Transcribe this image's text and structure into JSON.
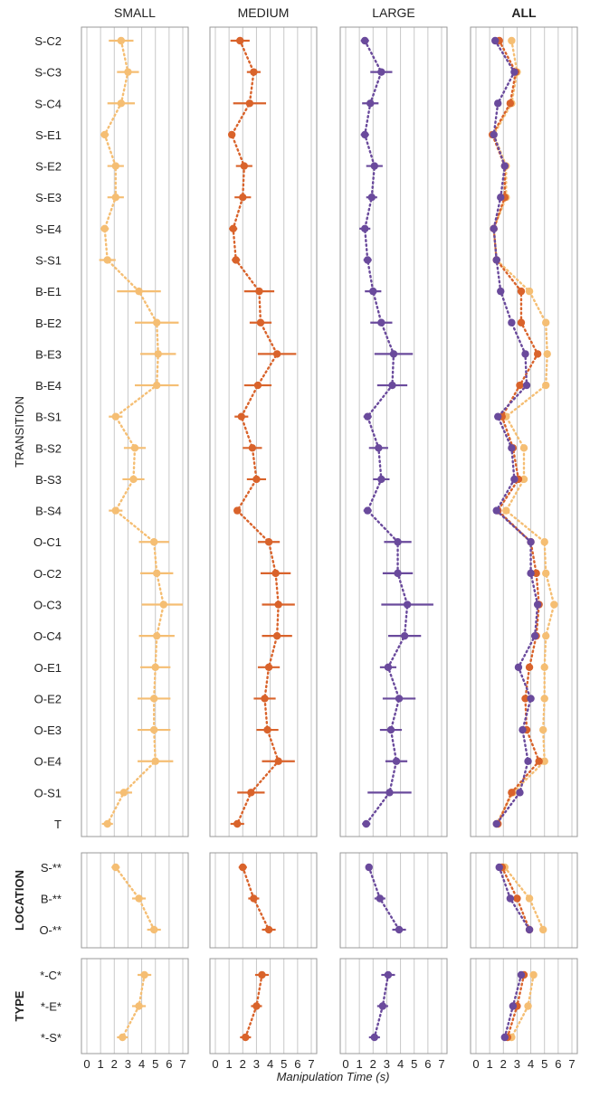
{
  "chart_data": {
    "type": "scatter",
    "xlabel": "Manipulation Time (s)",
    "xlim": [
      0,
      7
    ],
    "xticks": [
      "0",
      "1",
      "2",
      "3",
      "4",
      "5",
      "6",
      "7"
    ],
    "columns": [
      {
        "key": "small",
        "title": "SMALL",
        "bold": false
      },
      {
        "key": "medium",
        "title": "MEDIUM",
        "bold": false
      },
      {
        "key": "large",
        "title": "LARGE",
        "bold": false
      },
      {
        "key": "all",
        "title": "ALL",
        "bold": true
      }
    ],
    "series_colors": {
      "small": "#F5BE73",
      "medium": "#D9632B",
      "large": "#6A4A9C"
    },
    "groups": [
      {
        "label": "TRANSITION",
        "bold": false,
        "categories": [
          "S-C2",
          "S-C3",
          "S-C4",
          "S-E1",
          "S-E2",
          "S-E3",
          "S-E4",
          "S-S1",
          "B-E1",
          "B-E2",
          "B-E3",
          "B-E4",
          "B-S1",
          "B-S2",
          "B-S3",
          "B-S4",
          "O-C1",
          "O-C2",
          "O-C3",
          "O-C4",
          "O-E1",
          "O-E2",
          "O-E3",
          "O-E4",
          "O-S1",
          "T"
        ],
        "small": {
          "mean": [
            2.5,
            3.0,
            2.5,
            1.3,
            2.1,
            2.1,
            1.3,
            1.5,
            3.8,
            5.1,
            5.2,
            5.1,
            2.1,
            3.5,
            3.4,
            2.1,
            4.9,
            5.1,
            5.6,
            5.1,
            5.0,
            4.9,
            4.9,
            5.0,
            2.7,
            1.5
          ],
          "err": [
            0.9,
            0.8,
            1.0,
            0.3,
            0.6,
            0.6,
            0.3,
            0.6,
            1.6,
            1.6,
            1.3,
            1.6,
            0.5,
            0.8,
            0.8,
            0.5,
            1.1,
            1.2,
            1.6,
            1.3,
            1.1,
            1.2,
            1.2,
            1.3,
            0.6,
            0.4
          ]
        },
        "medium": {
          "mean": [
            1.8,
            2.8,
            2.5,
            1.2,
            2.1,
            2.0,
            1.3,
            1.5,
            3.2,
            3.3,
            4.5,
            3.1,
            1.9,
            2.7,
            3.0,
            1.6,
            3.9,
            4.4,
            4.6,
            4.5,
            3.9,
            3.6,
            3.8,
            4.6,
            2.6,
            1.6
          ],
          "err": [
            0.7,
            0.5,
            1.2,
            0.2,
            0.6,
            0.6,
            0.3,
            0.3,
            1.1,
            0.8,
            1.4,
            1.0,
            0.5,
            0.7,
            0.7,
            0.2,
            0.8,
            1.1,
            1.2,
            1.1,
            0.8,
            0.8,
            0.8,
            1.2,
            1.0,
            0.5
          ]
        },
        "large": {
          "mean": [
            1.4,
            2.6,
            1.8,
            1.4,
            2.1,
            1.9,
            1.4,
            1.6,
            2.0,
            2.6,
            3.5,
            3.4,
            1.6,
            2.4,
            2.6,
            1.6,
            3.8,
            3.8,
            4.5,
            4.3,
            3.1,
            3.9,
            3.3,
            3.7,
            3.2,
            1.5
          ],
          "err": [
            0.3,
            0.8,
            0.6,
            0.3,
            0.6,
            0.4,
            0.4,
            0.3,
            0.6,
            0.8,
            1.4,
            1.1,
            0.3,
            0.7,
            0.6,
            0.3,
            1.0,
            1.1,
            1.9,
            1.2,
            0.6,
            1.2,
            0.8,
            0.8,
            1.6,
            0.3
          ]
        },
        "all": {
          "small": [
            2.6,
            3.0,
            2.6,
            1.3,
            2.2,
            2.2,
            1.3,
            1.5,
            3.9,
            5.1,
            5.2,
            5.1,
            2.2,
            3.5,
            3.5,
            2.2,
            5.0,
            5.1,
            5.7,
            5.1,
            5.0,
            5.0,
            4.9,
            5.0,
            2.7,
            1.5
          ],
          "medium": [
            1.7,
            2.9,
            2.5,
            1.2,
            2.1,
            2.1,
            1.3,
            1.5,
            3.3,
            3.3,
            4.5,
            3.2,
            1.9,
            2.7,
            3.1,
            1.6,
            4.0,
            4.4,
            4.6,
            4.4,
            3.9,
            3.6,
            3.7,
            4.6,
            2.6,
            1.6
          ],
          "large": [
            1.4,
            2.8,
            1.6,
            1.3,
            2.1,
            1.8,
            1.3,
            1.5,
            1.8,
            2.6,
            3.6,
            3.7,
            1.6,
            2.6,
            2.8,
            1.5,
            4.0,
            4.0,
            4.5,
            4.3,
            3.1,
            4.0,
            3.4,
            3.8,
            3.2,
            1.5
          ]
        }
      },
      {
        "label": "LOCATION",
        "bold": true,
        "categories": [
          "S-**",
          "B-**",
          "O-**"
        ],
        "small": {
          "mean": [
            2.1,
            3.8,
            4.9
          ],
          "err": [
            0.3,
            0.5,
            0.5
          ]
        },
        "medium": {
          "mean": [
            2.0,
            2.8,
            3.9
          ],
          "err": [
            0.3,
            0.4,
            0.5
          ]
        },
        "large": {
          "mean": [
            1.7,
            2.5,
            3.9
          ],
          "err": [
            0.2,
            0.4,
            0.5
          ]
        },
        "all": {
          "small": [
            2.1,
            3.9,
            4.9
          ],
          "medium": [
            1.9,
            3.0,
            3.9
          ],
          "large": [
            1.7,
            2.5,
            3.9
          ]
        }
      },
      {
        "label": "TYPE",
        "bold": true,
        "categories": [
          "*-C*",
          "*-E*",
          "*-S*"
        ],
        "small": {
          "mean": [
            4.2,
            3.8,
            2.6
          ],
          "err": [
            0.5,
            0.5,
            0.4
          ]
        },
        "medium": {
          "mean": [
            3.4,
            3.0,
            2.2
          ],
          "err": [
            0.5,
            0.4,
            0.4
          ]
        },
        "large": {
          "mean": [
            3.1,
            2.7,
            2.1
          ],
          "err": [
            0.5,
            0.4,
            0.4
          ]
        },
        "all": {
          "small": [
            4.2,
            3.8,
            2.6
          ],
          "medium": [
            3.5,
            3.0,
            2.3
          ],
          "large": [
            3.3,
            2.7,
            2.1
          ]
        }
      }
    ]
  }
}
